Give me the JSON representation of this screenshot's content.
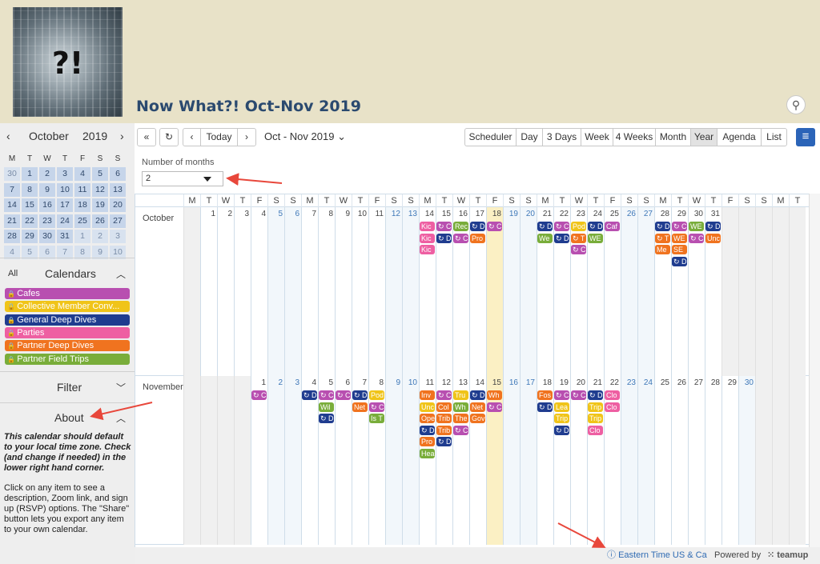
{
  "header": {
    "logo_text": "?!",
    "title": "Now What?! Oct-Nov 2019",
    "search_icon": "magnifier-icon"
  },
  "mini_calendar": {
    "month": "October",
    "year": "2019",
    "weekdays": [
      "M",
      "T",
      "W",
      "T",
      "F",
      "S",
      "S"
    ],
    "weeks": [
      [
        "30",
        "1",
        "2",
        "3",
        "4",
        "5",
        "6"
      ],
      [
        "7",
        "8",
        "9",
        "10",
        "11",
        "12",
        "13"
      ],
      [
        "14",
        "15",
        "16",
        "17",
        "18",
        "19",
        "20"
      ],
      [
        "21",
        "22",
        "23",
        "24",
        "25",
        "26",
        "27"
      ],
      [
        "28",
        "29",
        "30",
        "31",
        "1",
        "2",
        "3"
      ],
      [
        "4",
        "5",
        "6",
        "7",
        "8",
        "9",
        "10"
      ]
    ]
  },
  "calendars_panel": {
    "all_label": "All",
    "title": "Calendars",
    "items": [
      {
        "label": "Cafes",
        "color": "#b84fb0"
      },
      {
        "label": "Collective Member Conv...",
        "color": "#f0c419"
      },
      {
        "label": "General Deep Dives",
        "color": "#1f3c8f"
      },
      {
        "label": "Parties",
        "color": "#ee5fa2"
      },
      {
        "label": "Partner Deep Dives",
        "color": "#f0731f"
      },
      {
        "label": "Partner Field Trips",
        "color": "#79ad3a"
      }
    ]
  },
  "filter": {
    "title": "Filter"
  },
  "about": {
    "title": "About",
    "bold_text": "This calendar should default to your local time zone. Check (and change if needed) in the lower right hand corner.",
    "text": "Click on any item to see a description, Zoom link, and sign up (RSVP) options.  The \"Share\" button lets you export any item to your own calendar."
  },
  "toolbar": {
    "today": "Today",
    "range": "Oct - Nov 2019",
    "views": [
      "Scheduler",
      "Day",
      "3 Days",
      "Week",
      "4 Weeks",
      "Month",
      "Year",
      "Agenda",
      "List"
    ],
    "active_view": "Year"
  },
  "months_setting": {
    "label": "Number of months",
    "value": "2"
  },
  "grid": {
    "weekday_header": [
      "M",
      "T",
      "W",
      "T",
      "F",
      "S",
      "S",
      "M",
      "T",
      "W",
      "T",
      "F",
      "S",
      "S",
      "M",
      "T",
      "W",
      "T",
      "F",
      "S",
      "S",
      "M",
      "T",
      "W",
      "T",
      "F",
      "S",
      "S",
      "M",
      "T",
      "W",
      "T",
      "F",
      "S",
      "S",
      "M",
      "T"
    ],
    "months": [
      {
        "name": "October",
        "offset": 1,
        "days": 31,
        "today": 18,
        "events": [
          {
            "day": 14,
            "row": 0,
            "color": "#ee5fa2",
            "text": "Kic"
          },
          {
            "day": 14,
            "row": 1,
            "color": "#ee5fa2",
            "text": "Kic"
          },
          {
            "day": 14,
            "row": 2,
            "color": "#ee5fa2",
            "text": "Kic"
          },
          {
            "day": 15,
            "row": 0,
            "color": "#b84fb0",
            "text": "↻ C"
          },
          {
            "day": 15,
            "row": 1,
            "color": "#1f3c8f",
            "text": "↻ D"
          },
          {
            "day": 16,
            "row": 0,
            "color": "#79ad3a",
            "text": "Rec"
          },
          {
            "day": 16,
            "row": 1,
            "color": "#b84fb0",
            "text": "↻ C"
          },
          {
            "day": 17,
            "row": 0,
            "color": "#1f3c8f",
            "text": "↻ D"
          },
          {
            "day": 17,
            "row": 1,
            "color": "#f0731f",
            "text": "Pro"
          },
          {
            "day": 18,
            "row": 0,
            "color": "#b84fb0",
            "text": "↻ C"
          },
          {
            "day": 21,
            "row": 0,
            "color": "#1f3c8f",
            "text": "↻ D"
          },
          {
            "day": 21,
            "row": 1,
            "color": "#79ad3a",
            "text": "We"
          },
          {
            "day": 22,
            "row": 0,
            "color": "#b84fb0",
            "text": "↻ C"
          },
          {
            "day": 22,
            "row": 1,
            "color": "#1f3c8f",
            "text": "↻ D"
          },
          {
            "day": 23,
            "row": 0,
            "color": "#f0c419",
            "text": "Pod"
          },
          {
            "day": 23,
            "row": 1,
            "color": "#f0731f",
            "text": "↻ T"
          },
          {
            "day": 23,
            "row": 2,
            "color": "#b84fb0",
            "text": "↻ C"
          },
          {
            "day": 24,
            "row": 0,
            "color": "#1f3c8f",
            "text": "↻ D"
          },
          {
            "day": 24,
            "row": 1,
            "color": "#79ad3a",
            "text": "WE"
          },
          {
            "day": 25,
            "row": 0,
            "color": "#b84fb0",
            "text": "Caf"
          },
          {
            "day": 28,
            "row": 0,
            "color": "#1f3c8f",
            "text": "↻ D"
          },
          {
            "day": 28,
            "row": 1,
            "color": "#f0731f",
            "text": "↻ T"
          },
          {
            "day": 28,
            "row": 2,
            "color": "#f0731f",
            "text": "Me"
          },
          {
            "day": 29,
            "row": 0,
            "color": "#b84fb0",
            "text": "↻ C"
          },
          {
            "day": 29,
            "row": 1,
            "color": "#f0731f",
            "text": "WE"
          },
          {
            "day": 29,
            "row": 2,
            "color": "#f0731f",
            "text": "SE"
          },
          {
            "day": 29,
            "row": 3,
            "color": "#1f3c8f",
            "text": "↻ D"
          },
          {
            "day": 30,
            "row": 0,
            "color": "#79ad3a",
            "text": "WE"
          },
          {
            "day": 30,
            "row": 1,
            "color": "#b84fb0",
            "text": "↻ C"
          },
          {
            "day": 31,
            "row": 0,
            "color": "#1f3c8f",
            "text": "↻ D"
          },
          {
            "day": 31,
            "row": 1,
            "color": "#f0731f",
            "text": "Unc"
          }
        ]
      },
      {
        "name": "November",
        "offset": 4,
        "days": 30,
        "today": 15,
        "events": [
          {
            "day": 1,
            "row": 0,
            "color": "#b84fb0",
            "text": "↻ C"
          },
          {
            "day": 4,
            "row": 0,
            "color": "#1f3c8f",
            "text": "↻ D"
          },
          {
            "day": 5,
            "row": 0,
            "color": "#b84fb0",
            "text": "↻ C"
          },
          {
            "day": 5,
            "row": 1,
            "color": "#79ad3a",
            "text": "Wil"
          },
          {
            "day": 5,
            "row": 2,
            "color": "#1f3c8f",
            "text": "↻ D"
          },
          {
            "day": 6,
            "row": 0,
            "color": "#b84fb0",
            "text": "↻ C"
          },
          {
            "day": 7,
            "row": 0,
            "color": "#1f3c8f",
            "text": "↻ D"
          },
          {
            "day": 7,
            "row": 1,
            "color": "#f0731f",
            "text": "Net"
          },
          {
            "day": 8,
            "row": 0,
            "color": "#f0c419",
            "text": "Pod"
          },
          {
            "day": 8,
            "row": 1,
            "color": "#b84fb0",
            "text": "↻ C"
          },
          {
            "day": 8,
            "row": 2,
            "color": "#79ad3a",
            "text": "Is T"
          },
          {
            "day": 11,
            "row": 0,
            "color": "#f0731f",
            "text": "Inv"
          },
          {
            "day": 11,
            "row": 1,
            "color": "#f0c419",
            "text": "Unc"
          },
          {
            "day": 11,
            "row": 2,
            "color": "#f0731f",
            "text": "Ope"
          },
          {
            "day": 11,
            "row": 3,
            "color": "#1f3c8f",
            "text": "↻ D"
          },
          {
            "day": 11,
            "row": 4,
            "color": "#f0731f",
            "text": "Pro"
          },
          {
            "day": 11,
            "row": 5,
            "color": "#79ad3a",
            "text": "Hea"
          },
          {
            "day": 12,
            "row": 0,
            "color": "#b84fb0",
            "text": "↻ C"
          },
          {
            "day": 12,
            "row": 1,
            "color": "#f0731f",
            "text": "Col"
          },
          {
            "day": 12,
            "row": 2,
            "color": "#f0731f",
            "text": "Trib"
          },
          {
            "day": 12,
            "row": 3,
            "color": "#f0731f",
            "text": "Trib"
          },
          {
            "day": 12,
            "row": 4,
            "color": "#1f3c8f",
            "text": "↻ D"
          },
          {
            "day": 13,
            "row": 0,
            "color": "#f0c419",
            "text": "Tru"
          },
          {
            "day": 13,
            "row": 1,
            "color": "#79ad3a",
            "text": "Wh"
          },
          {
            "day": 13,
            "row": 2,
            "color": "#f0731f",
            "text": "The"
          },
          {
            "day": 13,
            "row": 3,
            "color": "#b84fb0",
            "text": "↻ C"
          },
          {
            "day": 14,
            "row": 0,
            "color": "#1f3c8f",
            "text": "↻ D"
          },
          {
            "day": 14,
            "row": 1,
            "color": "#f0731f",
            "text": "Net"
          },
          {
            "day": 14,
            "row": 2,
            "color": "#f0731f",
            "text": "Gov"
          },
          {
            "day": 15,
            "row": 0,
            "color": "#f0731f",
            "text": "Wh"
          },
          {
            "day": 15,
            "row": 1,
            "color": "#b84fb0",
            "text": "↻ C"
          },
          {
            "day": 18,
            "row": 0,
            "color": "#f0731f",
            "text": "Fos"
          },
          {
            "day": 18,
            "row": 1,
            "color": "#1f3c8f",
            "text": "↻ D"
          },
          {
            "day": 19,
            "row": 0,
            "color": "#b84fb0",
            "text": "↻ C"
          },
          {
            "day": 19,
            "row": 1,
            "color": "#f0c419",
            "text": "Lea"
          },
          {
            "day": 19,
            "row": 2,
            "color": "#f0c419",
            "text": "Trip"
          },
          {
            "day": 19,
            "row": 3,
            "color": "#1f3c8f",
            "text": "↻ D"
          },
          {
            "day": 20,
            "row": 0,
            "color": "#b84fb0",
            "text": "↻ C"
          },
          {
            "day": 21,
            "row": 0,
            "color": "#1f3c8f",
            "text": "↻ D"
          },
          {
            "day": 21,
            "row": 1,
            "color": "#f0c419",
            "text": "Trip"
          },
          {
            "day": 21,
            "row": 2,
            "color": "#f0c419",
            "text": "Trip"
          },
          {
            "day": 21,
            "row": 3,
            "color": "#ee5fa2",
            "text": "Clo"
          },
          {
            "day": 22,
            "row": 0,
            "color": "#ee5fa2",
            "text": "Clo"
          },
          {
            "day": 22,
            "row": 1,
            "color": "#ee5fa2",
            "text": "Clo"
          }
        ]
      }
    ]
  },
  "footer": {
    "timezone": "Eastern Time US & Ca",
    "powered_by": "Powered by",
    "brand": "teamup"
  }
}
